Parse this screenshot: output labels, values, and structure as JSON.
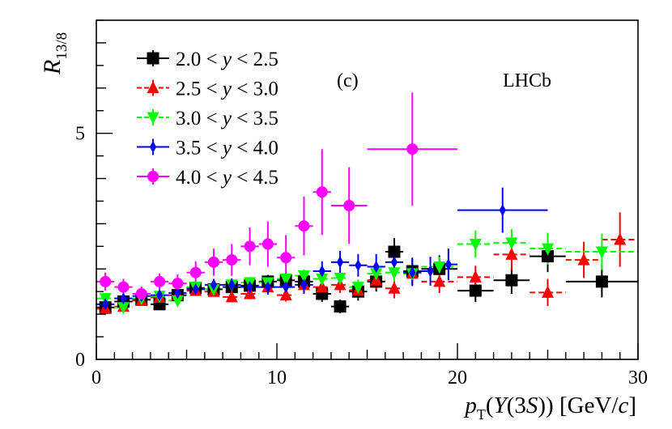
{
  "chart_data": {
    "type": "scatter",
    "experiment_label": "LHCb",
    "panel_label": "(c)",
    "ylabel_main": "R",
    "ylabel_sub": "13/8",
    "xlabel": {
      "p": "p",
      "T": "T",
      "paren_open": "(",
      "upsilon": "Υ",
      "mid": "(3",
      "S": "S",
      "close": "))",
      "unit_open": " [GeV/",
      "c": "c",
      "unit_close": "]"
    },
    "xlim": [
      0,
      30
    ],
    "ylim": [
      0,
      7.5
    ],
    "x_ticks": [
      0,
      10,
      20,
      30
    ],
    "y_ticks": [
      0,
      5
    ],
    "x_tick_labels": [
      "0",
      "10",
      "20",
      "30"
    ],
    "y_tick_labels": [
      "0",
      "5"
    ],
    "grid": false,
    "legend_position": "top-left",
    "series": [
      {
        "name": "2.0 < y < 2.5",
        "range_lo": "2.0",
        "range_hi": "2.5",
        "color": "#000000",
        "marker": "square",
        "line": "solid",
        "points": [
          {
            "x": 0.5,
            "y": 1.15,
            "xerr": 0.5,
            "yerr": 0.1
          },
          {
            "x": 1.5,
            "y": 1.28,
            "xerr": 0.5,
            "yerr": 0.1
          },
          {
            "x": 2.5,
            "y": 1.32,
            "xerr": 0.5,
            "yerr": 0.1
          },
          {
            "x": 3.5,
            "y": 1.22,
            "xerr": 0.5,
            "yerr": 0.1
          },
          {
            "x": 4.5,
            "y": 1.42,
            "xerr": 0.5,
            "yerr": 0.1
          },
          {
            "x": 5.5,
            "y": 1.58,
            "xerr": 0.5,
            "yerr": 0.1
          },
          {
            "x": 6.5,
            "y": 1.55,
            "xerr": 0.5,
            "yerr": 0.1
          },
          {
            "x": 7.5,
            "y": 1.6,
            "xerr": 0.5,
            "yerr": 0.12
          },
          {
            "x": 8.5,
            "y": 1.63,
            "xerr": 0.5,
            "yerr": 0.13
          },
          {
            "x": 9.5,
            "y": 1.72,
            "xerr": 0.5,
            "yerr": 0.15
          },
          {
            "x": 10.5,
            "y": 1.75,
            "xerr": 0.5,
            "yerr": 0.17
          },
          {
            "x": 11.5,
            "y": 1.72,
            "xerr": 0.5,
            "yerr": 0.18
          },
          {
            "x": 12.5,
            "y": 1.45,
            "xerr": 0.5,
            "yerr": 0.18
          },
          {
            "x": 13.5,
            "y": 1.17,
            "xerr": 0.5,
            "yerr": 0.15
          },
          {
            "x": 14.5,
            "y": 1.5,
            "xerr": 0.5,
            "yerr": 0.2
          },
          {
            "x": 15.5,
            "y": 1.72,
            "xerr": 0.5,
            "yerr": 0.22
          },
          {
            "x": 16.5,
            "y": 2.38,
            "xerr": 0.5,
            "yerr": 0.3
          },
          {
            "x": 17.5,
            "y": 1.95,
            "xerr": 0.5,
            "yerr": 0.3
          },
          {
            "x": 19.0,
            "y": 2.0,
            "xerr": 1.0,
            "yerr": 0.3
          },
          {
            "x": 21.0,
            "y": 1.52,
            "xerr": 1.0,
            "yerr": 0.25
          },
          {
            "x": 23.0,
            "y": 1.75,
            "xerr": 1.0,
            "yerr": 0.3
          },
          {
            "x": 25.0,
            "y": 2.28,
            "xerr": 1.0,
            "yerr": 0.35
          },
          {
            "x": 28.0,
            "y": 1.72,
            "xerr": 2.0,
            "yerr": 0.35
          }
        ]
      },
      {
        "name": "2.5 < y < 3.0",
        "range_lo": "2.5",
        "range_hi": "3.0",
        "color": "#ff0000",
        "marker": "triangle-up",
        "line": "dashed",
        "points": [
          {
            "x": 0.5,
            "y": 1.12,
            "xerr": 0.5,
            "yerr": 0.1
          },
          {
            "x": 1.5,
            "y": 1.17,
            "xerr": 0.5,
            "yerr": 0.1
          },
          {
            "x": 2.5,
            "y": 1.3,
            "xerr": 0.5,
            "yerr": 0.1
          },
          {
            "x": 3.5,
            "y": 1.37,
            "xerr": 0.5,
            "yerr": 0.1
          },
          {
            "x": 4.5,
            "y": 1.42,
            "xerr": 0.5,
            "yerr": 0.1
          },
          {
            "x": 5.5,
            "y": 1.52,
            "xerr": 0.5,
            "yerr": 0.1
          },
          {
            "x": 6.5,
            "y": 1.5,
            "xerr": 0.5,
            "yerr": 0.1
          },
          {
            "x": 7.5,
            "y": 1.38,
            "xerr": 0.5,
            "yerr": 0.12
          },
          {
            "x": 8.5,
            "y": 1.45,
            "xerr": 0.5,
            "yerr": 0.12
          },
          {
            "x": 9.5,
            "y": 1.6,
            "xerr": 0.5,
            "yerr": 0.14
          },
          {
            "x": 10.5,
            "y": 1.42,
            "xerr": 0.5,
            "yerr": 0.14
          },
          {
            "x": 11.5,
            "y": 1.65,
            "xerr": 0.5,
            "yerr": 0.15
          },
          {
            "x": 12.5,
            "y": 1.6,
            "xerr": 0.5,
            "yerr": 0.16
          },
          {
            "x": 13.5,
            "y": 1.65,
            "xerr": 0.5,
            "yerr": 0.18
          },
          {
            "x": 14.5,
            "y": 1.53,
            "xerr": 0.5,
            "yerr": 0.18
          },
          {
            "x": 15.5,
            "y": 1.75,
            "xerr": 0.5,
            "yerr": 0.2
          },
          {
            "x": 16.5,
            "y": 1.57,
            "xerr": 0.5,
            "yerr": 0.22
          },
          {
            "x": 17.5,
            "y": 1.9,
            "xerr": 0.5,
            "yerr": 0.25
          },
          {
            "x": 19.0,
            "y": 1.72,
            "xerr": 1.0,
            "yerr": 0.25
          },
          {
            "x": 21.0,
            "y": 1.82,
            "xerr": 1.0,
            "yerr": 0.25
          },
          {
            "x": 23.0,
            "y": 2.32,
            "xerr": 1.0,
            "yerr": 0.35
          },
          {
            "x": 25.0,
            "y": 1.48,
            "xerr": 1.0,
            "yerr": 0.3
          },
          {
            "x": 27.0,
            "y": 2.2,
            "xerr": 1.0,
            "yerr": 0.4
          },
          {
            "x": 29.0,
            "y": 2.65,
            "xerr": 1.0,
            "yerr": 0.6
          }
        ]
      },
      {
        "name": "3.0 < y < 3.5",
        "range_lo": "3.0",
        "range_hi": "3.5",
        "color": "#00ff00",
        "marker": "triangle-down",
        "line": "dashed",
        "points": [
          {
            "x": 0.5,
            "y": 1.35,
            "xerr": 0.5,
            "yerr": 0.1
          },
          {
            "x": 1.5,
            "y": 1.15,
            "xerr": 0.5,
            "yerr": 0.1
          },
          {
            "x": 2.5,
            "y": 1.35,
            "xerr": 0.5,
            "yerr": 0.1
          },
          {
            "x": 3.5,
            "y": 1.4,
            "xerr": 0.5,
            "yerr": 0.1
          },
          {
            "x": 4.5,
            "y": 1.3,
            "xerr": 0.5,
            "yerr": 0.1
          },
          {
            "x": 5.5,
            "y": 1.6,
            "xerr": 0.5,
            "yerr": 0.1
          },
          {
            "x": 6.5,
            "y": 1.55,
            "xerr": 0.5,
            "yerr": 0.1
          },
          {
            "x": 7.5,
            "y": 1.65,
            "xerr": 0.5,
            "yerr": 0.1
          },
          {
            "x": 8.5,
            "y": 1.7,
            "xerr": 0.5,
            "yerr": 0.12
          },
          {
            "x": 9.5,
            "y": 1.7,
            "xerr": 0.5,
            "yerr": 0.12
          },
          {
            "x": 10.5,
            "y": 1.78,
            "xerr": 0.5,
            "yerr": 0.13
          },
          {
            "x": 11.5,
            "y": 1.85,
            "xerr": 0.5,
            "yerr": 0.14
          },
          {
            "x": 12.5,
            "y": 1.78,
            "xerr": 0.5,
            "yerr": 0.15
          },
          {
            "x": 13.5,
            "y": 1.8,
            "xerr": 0.5,
            "yerr": 0.16
          },
          {
            "x": 14.5,
            "y": 1.6,
            "xerr": 0.5,
            "yerr": 0.17
          },
          {
            "x": 15.5,
            "y": 1.9,
            "xerr": 0.5,
            "yerr": 0.2
          },
          {
            "x": 16.5,
            "y": 1.92,
            "xerr": 0.5,
            "yerr": 0.2
          },
          {
            "x": 17.5,
            "y": 1.9,
            "xerr": 0.5,
            "yerr": 0.22
          },
          {
            "x": 19.0,
            "y": 2.05,
            "xerr": 1.0,
            "yerr": 0.22
          },
          {
            "x": 21.0,
            "y": 2.55,
            "xerr": 1.0,
            "yerr": 0.3
          },
          {
            "x": 23.0,
            "y": 2.58,
            "xerr": 1.0,
            "yerr": 0.3
          },
          {
            "x": 25.0,
            "y": 2.45,
            "xerr": 1.0,
            "yerr": 0.35
          },
          {
            "x": 28.0,
            "y": 2.38,
            "xerr": 2.0,
            "yerr": 0.4
          }
        ]
      },
      {
        "name": "3.5 < y < 4.0",
        "range_lo": "3.5",
        "range_hi": "4.0",
        "color": "#0000ff",
        "marker": "cross",
        "line": "solid",
        "points": [
          {
            "x": 0.5,
            "y": 1.22,
            "xerr": 0.5,
            "yerr": 0.1
          },
          {
            "x": 1.5,
            "y": 1.35,
            "xerr": 0.5,
            "yerr": 0.1
          },
          {
            "x": 2.5,
            "y": 1.4,
            "xerr": 0.5,
            "yerr": 0.1
          },
          {
            "x": 3.5,
            "y": 1.42,
            "xerr": 0.5,
            "yerr": 0.1
          },
          {
            "x": 4.5,
            "y": 1.47,
            "xerr": 0.5,
            "yerr": 0.1
          },
          {
            "x": 5.5,
            "y": 1.55,
            "xerr": 0.5,
            "yerr": 0.12
          },
          {
            "x": 6.5,
            "y": 1.65,
            "xerr": 0.5,
            "yerr": 0.13
          },
          {
            "x": 7.5,
            "y": 1.65,
            "xerr": 0.5,
            "yerr": 0.14
          },
          {
            "x": 8.5,
            "y": 1.6,
            "xerr": 0.5,
            "yerr": 0.15
          },
          {
            "x": 9.5,
            "y": 1.6,
            "xerr": 0.5,
            "yerr": 0.17
          },
          {
            "x": 10.5,
            "y": 1.6,
            "xerr": 0.5,
            "yerr": 0.18
          },
          {
            "x": 11.5,
            "y": 1.65,
            "xerr": 0.5,
            "yerr": 0.2
          },
          {
            "x": 12.5,
            "y": 1.95,
            "xerr": 0.5,
            "yerr": 0.22
          },
          {
            "x": 13.5,
            "y": 2.15,
            "xerr": 0.5,
            "yerr": 0.25
          },
          {
            "x": 14.5,
            "y": 2.08,
            "xerr": 0.5,
            "yerr": 0.25
          },
          {
            "x": 15.5,
            "y": 2.05,
            "xerr": 0.5,
            "yerr": 0.28
          },
          {
            "x": 16.5,
            "y": 2.15,
            "xerr": 0.5,
            "yerr": 0.3
          },
          {
            "x": 17.5,
            "y": 1.92,
            "xerr": 0.5,
            "yerr": 0.3
          },
          {
            "x": 18.5,
            "y": 1.95,
            "xerr": 0.5,
            "yerr": 0.32
          },
          {
            "x": 19.5,
            "y": 2.1,
            "xerr": 0.5,
            "yerr": 0.35
          },
          {
            "x": 22.5,
            "y": 3.3,
            "xerr": 2.5,
            "yerr": 0.5
          }
        ]
      },
      {
        "name": "4.0 < y < 4.5",
        "range_lo": "4.0",
        "range_hi": "4.5",
        "color": "#ff00ff",
        "marker": "circle",
        "line": "solid",
        "points": [
          {
            "x": 0.5,
            "y": 1.72,
            "xerr": 0.5,
            "yerr": 0.2
          },
          {
            "x": 1.5,
            "y": 1.6,
            "xerr": 0.5,
            "yerr": 0.18
          },
          {
            "x": 2.5,
            "y": 1.45,
            "xerr": 0.5,
            "yerr": 0.16
          },
          {
            "x": 3.5,
            "y": 1.72,
            "xerr": 0.5,
            "yerr": 0.18
          },
          {
            "x": 4.5,
            "y": 1.68,
            "xerr": 0.5,
            "yerr": 0.2
          },
          {
            "x": 5.5,
            "y": 1.92,
            "xerr": 0.5,
            "yerr": 0.25
          },
          {
            "x": 6.5,
            "y": 2.15,
            "xerr": 0.5,
            "yerr": 0.3
          },
          {
            "x": 7.5,
            "y": 2.2,
            "xerr": 0.5,
            "yerr": 0.35
          },
          {
            "x": 8.5,
            "y": 2.5,
            "xerr": 0.5,
            "yerr": 0.42
          },
          {
            "x": 9.5,
            "y": 2.55,
            "xerr": 0.5,
            "yerr": 0.5
          },
          {
            "x": 10.5,
            "y": 2.25,
            "xerr": 0.5,
            "yerr": 0.5
          },
          {
            "x": 11.5,
            "y": 2.95,
            "xerr": 0.5,
            "yerr": 0.65
          },
          {
            "x": 12.5,
            "y": 3.7,
            "xerr": 0.5,
            "yerr": 0.95
          },
          {
            "x": 14.0,
            "y": 3.4,
            "xerr": 1.0,
            "yerr": 0.85
          },
          {
            "x": 17.5,
            "y": 4.65,
            "xerr": 2.5,
            "yerr": 1.25
          }
        ]
      }
    ]
  }
}
